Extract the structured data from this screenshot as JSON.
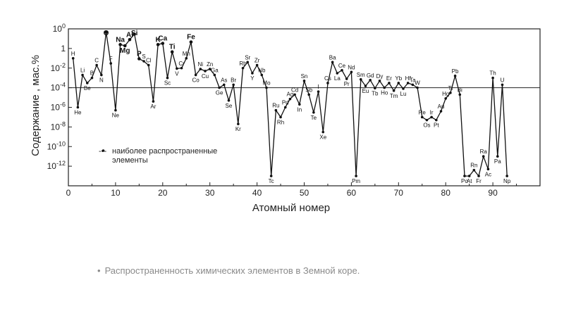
{
  "caption": {
    "bullet": "•",
    "text": "Распространенность химических элементов в Земной коре."
  },
  "chart_data": {
    "type": "line",
    "xlabel": "Атомный номер",
    "ylabel": "Содержание , мас.%",
    "y_scale": "log",
    "xlim": [
      0,
      100
    ],
    "ylim": [
      1e-14,
      100
    ],
    "x_ticks": [
      0,
      10,
      20,
      30,
      40,
      50,
      60,
      70,
      80,
      90
    ],
    "y_ticks": [
      {
        "value": 100,
        "label": "100"
      },
      {
        "value": 1,
        "label": "1"
      },
      {
        "value": 0.01,
        "label": "10-2"
      },
      {
        "value": 0.0001,
        "label": "10-4"
      },
      {
        "value": 1e-06,
        "label": "10-6"
      },
      {
        "value": 1e-08,
        "label": "10-8"
      },
      {
        "value": 1e-10,
        "label": "10-10"
      },
      {
        "value": 1e-12,
        "label": "10-12"
      }
    ],
    "reference_line": 0.0001,
    "legend": {
      "symbol": "-•-",
      "text": "наиболее распространенные элементы",
      "text_lines": [
        "наиболее распространенные",
        "элементы"
      ]
    },
    "series": [
      {
        "points": [
          {
            "z": 1,
            "el": "H",
            "v": 0.1
          },
          {
            "z": 2,
            "el": "He",
            "v": 1e-06
          },
          {
            "z": 3,
            "el": "Li",
            "v": 0.002
          },
          {
            "z": 4,
            "el": "Be",
            "v": 0.0003
          },
          {
            "z": 5,
            "el": "B",
            "v": 0.001
          },
          {
            "z": 6,
            "el": "C",
            "v": 0.02
          },
          {
            "z": 7,
            "el": "N",
            "v": 0.002
          },
          {
            "z": 8,
            "el": "O",
            "v": 47,
            "bold": true
          },
          {
            "z": 9,
            "el": "F",
            "v": 0.03
          },
          {
            "z": 10,
            "el": "Ne",
            "v": 5e-07
          },
          {
            "z": 11,
            "el": "Na",
            "v": 2.5,
            "bold": true
          },
          {
            "z": 12,
            "el": "Mg",
            "v": 1.9,
            "bold": true
          },
          {
            "z": 13,
            "el": "Al",
            "v": 8.0,
            "bold": true
          },
          {
            "z": 14,
            "el": "Si",
            "v": 29,
            "bold": true
          },
          {
            "z": 15,
            "el": "P",
            "v": 0.09,
            "bold": true
          },
          {
            "z": 16,
            "el": "S",
            "v": 0.05
          },
          {
            "z": 17,
            "el": "Cl",
            "v": 0.02
          },
          {
            "z": 18,
            "el": "Ar",
            "v": 4e-06
          },
          {
            "z": 19,
            "el": "K",
            "v": 2.5,
            "bold": true
          },
          {
            "z": 20,
            "el": "Ca",
            "v": 3.3,
            "bold": true
          },
          {
            "z": 21,
            "el": "Sc",
            "v": 0.001
          },
          {
            "z": 22,
            "el": "Ti",
            "v": 0.45,
            "bold": true
          },
          {
            "z": 23,
            "el": "V",
            "v": 0.009
          },
          {
            "z": 24,
            "el": "Cr",
            "v": 0.01
          },
          {
            "z": 25,
            "el": "Mn",
            "v": 0.1
          },
          {
            "z": 26,
            "el": "Fe",
            "v": 4.6,
            "bold": true
          },
          {
            "z": 27,
            "el": "Co",
            "v": 0.002
          },
          {
            "z": 28,
            "el": "Ni",
            "v": 0.008
          },
          {
            "z": 29,
            "el": "Cu",
            "v": 0.005
          },
          {
            "z": 30,
            "el": "Zn",
            "v": 0.008
          },
          {
            "z": 31,
            "el": "Ga",
            "v": 0.002
          },
          {
            "z": 32,
            "el": "Ge",
            "v": 0.0001
          },
          {
            "z": 33,
            "el": "As",
            "v": 0.0002
          },
          {
            "z": 34,
            "el": "Se",
            "v": 5e-06
          },
          {
            "z": 35,
            "el": "Br",
            "v": 0.0002
          },
          {
            "z": 36,
            "el": "Kr",
            "v": 2e-08
          },
          {
            "z": 37,
            "el": "Rb",
            "v": 0.01
          },
          {
            "z": 38,
            "el": "Sr",
            "v": 0.04
          },
          {
            "z": 39,
            "el": "Y",
            "v": 0.003
          },
          {
            "z": 40,
            "el": "Zr",
            "v": 0.02
          },
          {
            "z": 41,
            "el": "Nb",
            "v": 0.002
          },
          {
            "z": 42,
            "el": "Mo",
            "v": 0.0001
          },
          {
            "z": 43,
            "el": "Tc",
            "v": 1e-13
          },
          {
            "z": 44,
            "el": "Ru",
            "v": 5e-07
          },
          {
            "z": 45,
            "el": "Rh",
            "v": 1e-07
          },
          {
            "z": 46,
            "el": "Pd",
            "v": 1e-06
          },
          {
            "z": 47,
            "el": "Ag",
            "v": 7e-06
          },
          {
            "z": 48,
            "el": "Cd",
            "v": 2e-05
          },
          {
            "z": 49,
            "el": "In",
            "v": 2e-06
          },
          {
            "z": 50,
            "el": "Sn",
            "v": 0.0005
          },
          {
            "z": 51,
            "el": "Sb",
            "v": 2e-05
          },
          {
            "z": 52,
            "el": "Te",
            "v": 3e-07
          },
          {
            "z": 53,
            "el": "I",
            "v": 4e-05
          },
          {
            "z": 54,
            "el": "Xe",
            "v": 3e-09
          },
          {
            "z": 55,
            "el": "Cs",
            "v": 0.0003
          },
          {
            "z": 56,
            "el": "Ba",
            "v": 0.04
          },
          {
            "z": 57,
            "el": "La",
            "v": 0.003
          },
          {
            "z": 58,
            "el": "Ce",
            "v": 0.006
          },
          {
            "z": 59,
            "el": "Pr",
            "v": 0.0008
          },
          {
            "z": 60,
            "el": "Nd",
            "v": 0.004
          },
          {
            "z": 61,
            "el": "Pm",
            "v": 1e-13
          },
          {
            "z": 62,
            "el": "Sm",
            "v": 0.0007
          },
          {
            "z": 63,
            "el": "Eu",
            "v": 0.00015
          },
          {
            "z": 64,
            "el": "Gd",
            "v": 0.0006
          },
          {
            "z": 65,
            "el": "Tb",
            "v": 9e-05
          },
          {
            "z": 66,
            "el": "Dy",
            "v": 0.0005
          },
          {
            "z": 67,
            "el": "Ho",
            "v": 0.0001
          },
          {
            "z": 68,
            "el": "Er",
            "v": 0.0003
          },
          {
            "z": 69,
            "el": "Tm",
            "v": 5e-05
          },
          {
            "z": 70,
            "el": "Yb",
            "v": 0.0003
          },
          {
            "z": 71,
            "el": "Lu",
            "v": 8e-05
          },
          {
            "z": 72,
            "el": "Hf",
            "v": 0.0003
          },
          {
            "z": 73,
            "el": "Ta",
            "v": 0.0002
          },
          {
            "z": 74,
            "el": "W",
            "v": 0.0001
          },
          {
            "z": 75,
            "el": "Re",
            "v": 1e-07
          },
          {
            "z": 76,
            "el": "Os",
            "v": 5e-08
          },
          {
            "z": 77,
            "el": "Ir",
            "v": 1e-07
          },
          {
            "z": 78,
            "el": "Pt",
            "v": 5e-08
          },
          {
            "z": 79,
            "el": "Au",
            "v": 4e-07
          },
          {
            "z": 80,
            "el": "Hg",
            "v": 8e-06
          },
          {
            "z": 81,
            "el": "Tl",
            "v": 3e-05
          },
          {
            "z": 82,
            "el": "Pb",
            "v": 0.0016
          },
          {
            "z": 83,
            "el": "Bi",
            "v": 2e-05
          },
          {
            "z": 84,
            "el": "Po",
            "v": 1e-13
          },
          {
            "z": 85,
            "el": "At",
            "v": 1e-13
          },
          {
            "z": 86,
            "el": "Rn",
            "v": 4e-13
          },
          {
            "z": 87,
            "el": "Fr",
            "v": 1e-13
          },
          {
            "z": 88,
            "el": "Ra",
            "v": 1e-11
          },
          {
            "z": 89,
            "el": "Ac",
            "v": 5e-13
          },
          {
            "z": 90,
            "el": "Th",
            "v": 0.001
          },
          {
            "z": 91,
            "el": "Pa",
            "v": 1e-11
          },
          {
            "z": 92,
            "el": "U",
            "v": 0.0002
          },
          {
            "z": 93,
            "el": "Np",
            "v": 1e-13
          }
        ]
      }
    ]
  }
}
